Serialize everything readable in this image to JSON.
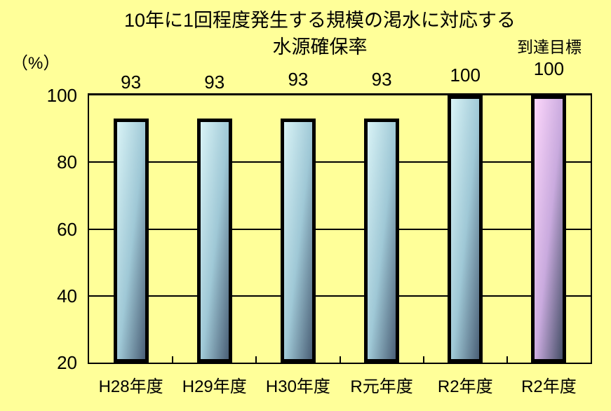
{
  "title": {
    "line1": "10年に1回程度発生する規模の渇水に対応する",
    "line2": "水源確保率"
  },
  "axis_unit_label": "（%）",
  "annotations": {
    "target_label": "到達目標"
  },
  "colors": {
    "background": "#ffff99",
    "axis_and_border": "#000000",
    "bar_actual_gradient": [
      "#d9f3f6",
      "#9fc8d6",
      "#4a5f76"
    ],
    "bar_target_gradient": [
      "#fdd7fb",
      "#c9aade",
      "#444e66"
    ]
  },
  "chart_data": {
    "type": "bar",
    "title": "10年に1回程度発生する規模の渇水に対応する水源確保率",
    "categories": [
      "H28年度",
      "H29年度",
      "H30年度",
      "R元年度",
      "R2年度",
      "R2年度"
    ],
    "values": [
      93,
      93,
      93,
      93,
      100,
      100
    ],
    "value_labels": [
      "93",
      "93",
      "93",
      "93",
      "100",
      "100"
    ],
    "target_bar_index": 5,
    "ylabel": "（%）",
    "ylim": [
      20,
      100
    ],
    "yticks": [
      20,
      40,
      60,
      80,
      100
    ],
    "grid": true,
    "legend": "none"
  }
}
